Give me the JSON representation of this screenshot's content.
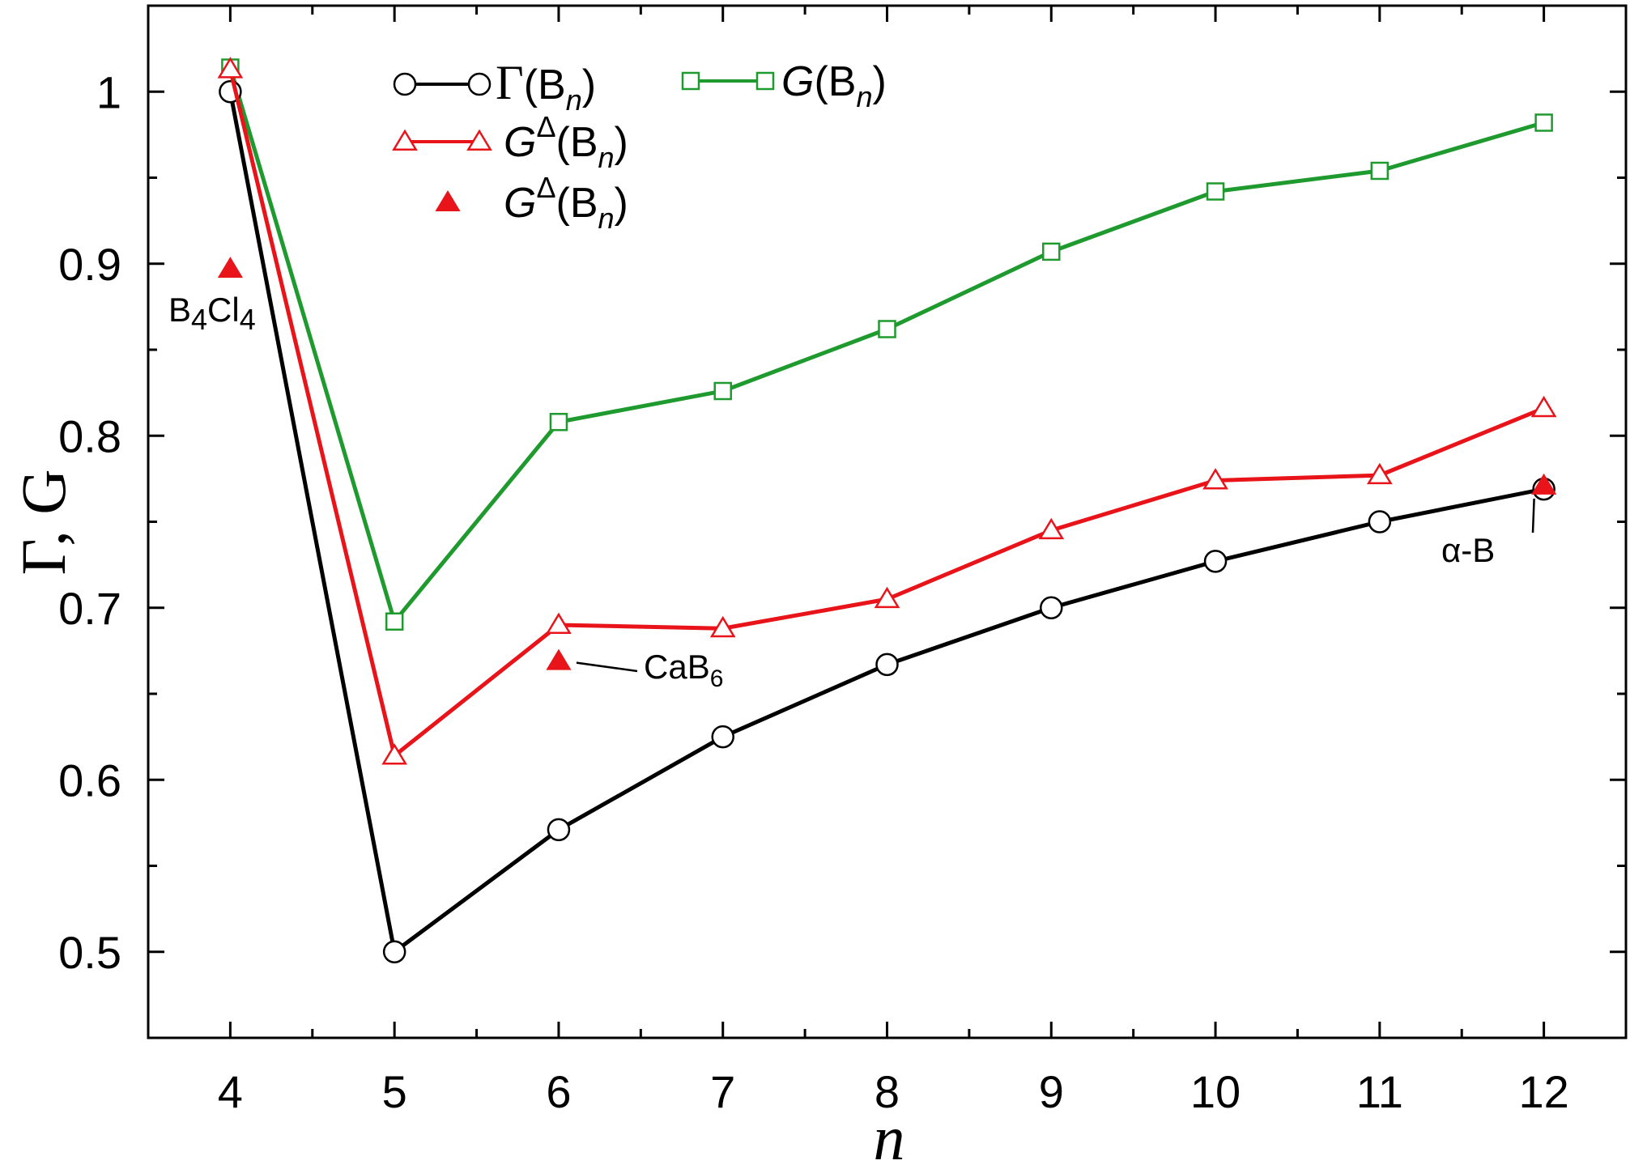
{
  "chart_data": {
    "type": "line",
    "xlabel": "n",
    "ylabel": "Γ, G",
    "x": [
      4,
      5,
      6,
      7,
      8,
      9,
      10,
      11,
      12
    ],
    "xlim": [
      3.5,
      12.5
    ],
    "ylim": [
      0.45,
      1.05
    ],
    "xticks": [
      "4",
      "5",
      "6",
      "7",
      "8",
      "9",
      "10",
      "11",
      "12"
    ],
    "yticks": [
      "0.5",
      "0.6",
      "0.7",
      "0.8",
      "0.9",
      "1"
    ],
    "ytick_values": [
      0.5,
      0.6,
      0.7,
      0.8,
      0.9,
      1.0
    ],
    "grid": false,
    "legend_position": "top-left",
    "series": [
      {
        "key": "gamma",
        "legend": {
          "main": "Γ",
          "mid": "(B",
          "sub": "n",
          "end": ")"
        },
        "color": "#000000",
        "marker": "open-circle",
        "values": [
          1.0,
          0.5,
          0.571,
          0.625,
          0.667,
          0.7,
          0.727,
          0.75,
          0.769
        ]
      },
      {
        "key": "gdelta",
        "legend": {
          "main": "G",
          "sup": "Δ",
          "mid": "(B",
          "sub": "n",
          "end": ")"
        },
        "color": "#e8141a",
        "marker": "open-triangle",
        "values": [
          1.013,
          0.614,
          0.69,
          0.688,
          0.705,
          0.745,
          0.774,
          0.777,
          0.816
        ]
      },
      {
        "key": "gdelta_points",
        "legend": {
          "main": "G",
          "sup": "Δ",
          "mid": "(B",
          "sub": "n",
          "end": ")"
        },
        "color": "#e8141a",
        "marker": "filled-triangle",
        "points": [
          {
            "x": 4,
            "y": 0.897
          },
          {
            "x": 6,
            "y": 0.669
          },
          {
            "x": 12,
            "y": 0.771
          }
        ]
      },
      {
        "key": "g",
        "legend": {
          "main": "G",
          "mid": "(B",
          "sub": "n",
          "end": ")"
        },
        "color": "#1f9a2e",
        "marker": "open-square",
        "values": [
          1.014,
          0.692,
          0.808,
          0.826,
          0.862,
          0.907,
          0.942,
          0.954,
          0.982
        ]
      }
    ],
    "annotations": [
      {
        "key": "b4cl4",
        "parts": [
          "B",
          "4",
          "Cl",
          "4"
        ],
        "x": 4,
        "y": 0.897
      },
      {
        "key": "cab6",
        "parts": [
          "CaB",
          "6"
        ],
        "x": 6,
        "y": 0.669
      },
      {
        "key": "alphab",
        "text": "α-B",
        "x": 12,
        "y": 0.771
      }
    ]
  }
}
